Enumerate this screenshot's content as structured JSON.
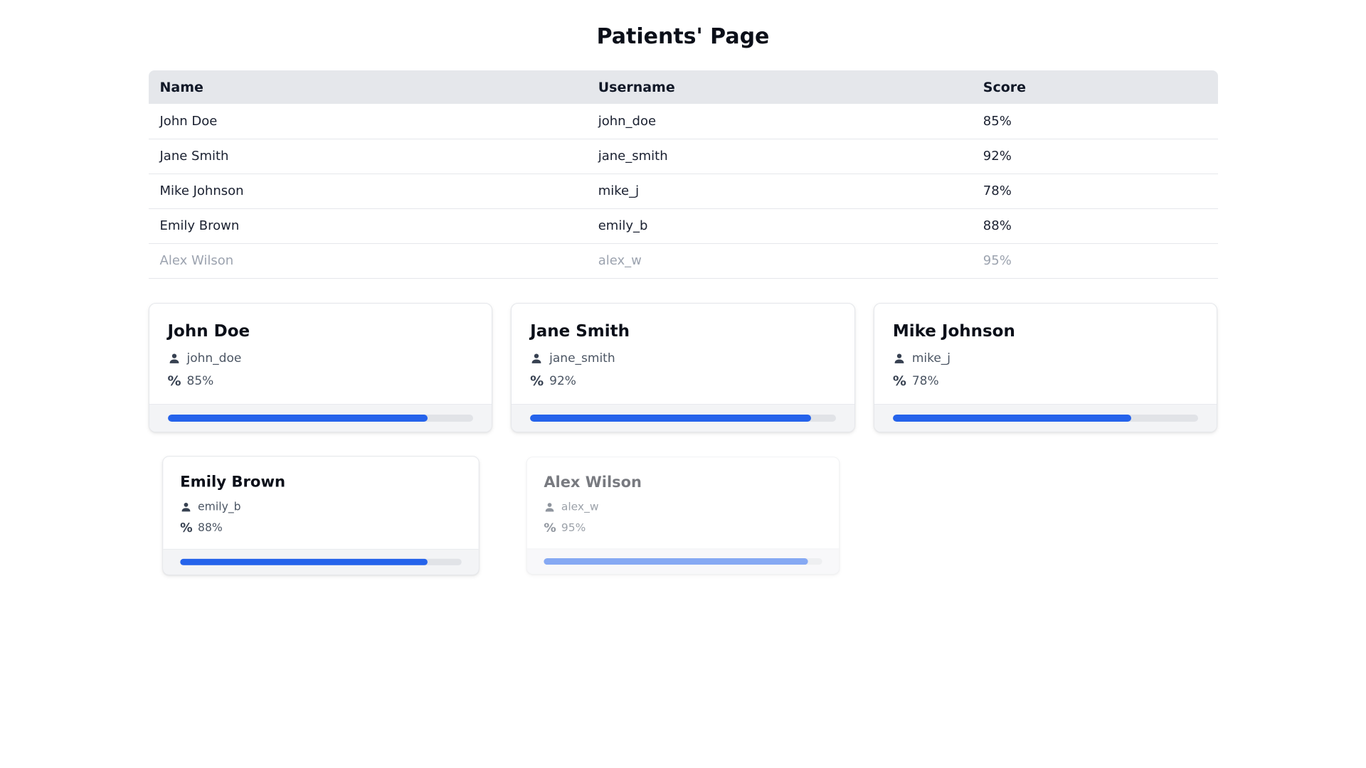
{
  "page": {
    "title": "Patients' Page"
  },
  "table": {
    "columns": [
      "Name",
      "Username",
      "Score"
    ],
    "rows": [
      {
        "name": "John Doe",
        "username": "john_doe",
        "score": "85%",
        "dimmed": false
      },
      {
        "name": "Jane Smith",
        "username": "jane_smith",
        "score": "92%",
        "dimmed": false
      },
      {
        "name": "Mike Johnson",
        "username": "mike_j",
        "score": "78%",
        "dimmed": false
      },
      {
        "name": "Emily Brown",
        "username": "emily_b",
        "score": "88%",
        "dimmed": false
      },
      {
        "name": "Alex Wilson",
        "username": "alex_w",
        "score": "95%",
        "dimmed": true
      }
    ]
  },
  "cards": [
    {
      "name": "John Doe",
      "username": "john_doe",
      "score": "85%",
      "progress_percent": 85,
      "dimmed": false,
      "scale": 1
    },
    {
      "name": "Jane Smith",
      "username": "jane_smith",
      "score": "92%",
      "progress_percent": 92,
      "dimmed": false,
      "scale": 1
    },
    {
      "name": "Mike Johnson",
      "username": "mike_j",
      "score": "78%",
      "progress_percent": 78,
      "dimmed": false,
      "scale": 1
    },
    {
      "name": "Emily Brown",
      "username": "emily_b",
      "score": "88%",
      "progress_percent": 88,
      "dimmed": false,
      "scale": 0.92
    },
    {
      "name": "Alex Wilson",
      "username": "alex_w",
      "score": "95%",
      "progress_percent": 95,
      "dimmed": true,
      "scale": 0.91
    }
  ],
  "icons": {
    "user": "user-icon",
    "percent": "percent-icon"
  },
  "colors": {
    "accent_blue": "#2563eb",
    "header_bg": "#e5e7eb",
    "footer_bg": "#f3f4f6",
    "track_gray": "#e1e3e7",
    "dimmed_text": "#9ca3af"
  }
}
